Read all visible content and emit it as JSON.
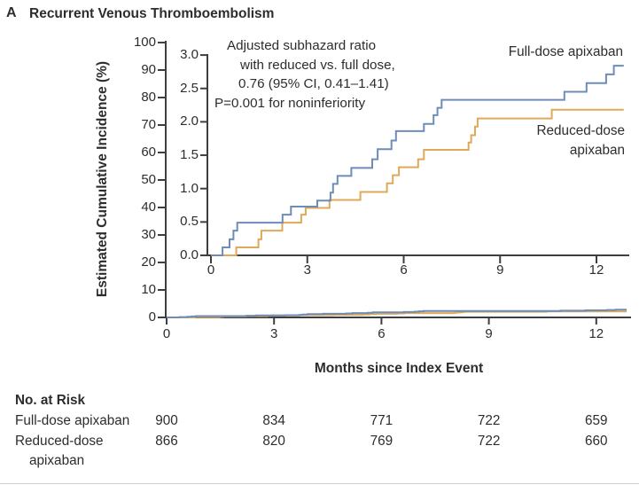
{
  "title": {
    "panel": "A",
    "text": "Recurrent Venous Thromboembolism"
  },
  "colors": {
    "full_dose": "#6d8db8",
    "reduced_dose": "#e0a95a",
    "axis": "#3e3e3e",
    "text": "#2d2d2d"
  },
  "chart_data": {
    "type": "line",
    "subtype": "cumulative-incidence-step-curves-with-inset",
    "title": "Recurrent Venous Thromboembolism",
    "xlabel": "Months since Index Event",
    "ylabel": "Estimated Cumulative Incidence (%)",
    "main_axis": {
      "xlim": [
        0,
        13
      ],
      "ylim": [
        0,
        100
      ],
      "x_ticks": [
        0,
        3,
        6,
        9,
        12
      ],
      "y_ticks": [
        0,
        10,
        20,
        30,
        40,
        50,
        60,
        70,
        80,
        90,
        100
      ]
    },
    "inset_axis": {
      "xlim": [
        0,
        13
      ],
      "ylim": [
        0,
        3.0
      ],
      "x_ticks": [
        0,
        3,
        6,
        9,
        12
      ],
      "y_tick_labels": [
        "0.0",
        "0.5",
        "1.0",
        "1.5",
        "2.0",
        "2.5",
        "3.0"
      ]
    },
    "end_month": 12.85,
    "series": [
      {
        "name": "Full-dose apixaban",
        "color": "#6d8db8",
        "points": [
          [
            0,
            0
          ],
          [
            0.36,
            0.12
          ],
          [
            0.58,
            0.24
          ],
          [
            0.7,
            0.37
          ],
          [
            0.82,
            0.49
          ],
          [
            2.23,
            0.61
          ],
          [
            2.49,
            0.73
          ],
          [
            3.31,
            0.82
          ],
          [
            3.72,
            0.94
          ],
          [
            3.8,
            1.07
          ],
          [
            3.94,
            1.19
          ],
          [
            4.37,
            1.31
          ],
          [
            5.02,
            1.44
          ],
          [
            5.19,
            1.59
          ],
          [
            5.62,
            1.72
          ],
          [
            5.76,
            1.86
          ],
          [
            6.63,
            1.97
          ],
          [
            6.93,
            2.1
          ],
          [
            7.05,
            2.21
          ],
          [
            7.18,
            2.33
          ],
          [
            11.0,
            2.45
          ],
          [
            11.69,
            2.58
          ],
          [
            12.3,
            2.71
          ],
          [
            12.54,
            2.84
          ]
        ]
      },
      {
        "name": "Reduced-dose apixaban",
        "color": "#e0a95a",
        "points": [
          [
            0,
            0
          ],
          [
            0.79,
            0.12
          ],
          [
            1.48,
            0.24
          ],
          [
            1.57,
            0.37
          ],
          [
            2.22,
            0.49
          ],
          [
            2.81,
            0.61
          ],
          [
            2.95,
            0.71
          ],
          [
            3.69,
            0.83
          ],
          [
            4.65,
            0.95
          ],
          [
            5.48,
            1.08
          ],
          [
            5.66,
            1.2
          ],
          [
            5.85,
            1.32
          ],
          [
            6.45,
            1.44
          ],
          [
            6.63,
            1.58
          ],
          [
            8.02,
            1.69
          ],
          [
            8.1,
            1.8
          ],
          [
            8.22,
            1.93
          ],
          [
            8.3,
            2.05
          ],
          [
            10.61,
            2.18
          ]
        ]
      }
    ],
    "annotation": {
      "lines": [
        "Adjusted subhazard ratio",
        "with reduced vs. full dose,",
        "0.76 (95% CI, 0.41–1.41)",
        "P=0.001 for noninferiority"
      ]
    },
    "legend_position": "inside-right"
  },
  "legend": {
    "full_dose": "Full-dose apixaban",
    "reduced_dose_line1": "Reduced-dose",
    "reduced_dose_line2": "apixaban"
  },
  "risk_table": {
    "header": "No. at Risk",
    "rows": [
      {
        "label": "Full-dose apixaban",
        "label2": "",
        "values": [
          "900",
          "834",
          "771",
          "722",
          "659"
        ]
      },
      {
        "label": "Reduced-dose",
        "label2": "apixaban",
        "values": [
          "866",
          "820",
          "769",
          "722",
          "660"
        ]
      }
    ]
  }
}
